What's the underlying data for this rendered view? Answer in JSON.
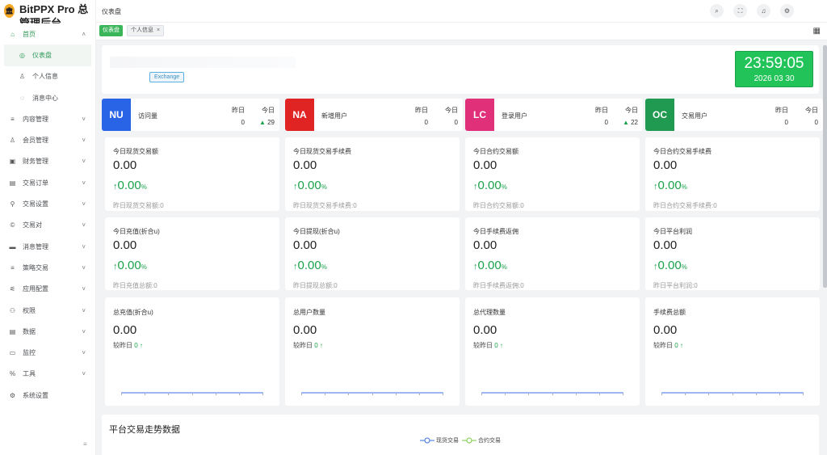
{
  "app": {
    "title": "BitPPX Pro 总管理后台",
    "logo_glyph": "🏛"
  },
  "sidebar": {
    "items": [
      {
        "label": "首页",
        "icon": "home-icon",
        "glyph": "⌂"
      },
      {
        "label": "仪表盘",
        "icon": "dashboard-icon",
        "glyph": "◎"
      },
      {
        "label": "个人信息",
        "icon": "user-icon",
        "glyph": "♙"
      },
      {
        "label": "消息中心",
        "icon": "message-icon",
        "glyph": "◌"
      },
      {
        "label": "内容管理",
        "icon": "list-icon",
        "glyph": "≡"
      },
      {
        "label": "会员管理",
        "icon": "member-icon",
        "glyph": "♙"
      },
      {
        "label": "财务管理",
        "icon": "finance-icon",
        "glyph": "▣"
      },
      {
        "label": "交易订单",
        "icon": "order-icon",
        "glyph": "▤"
      },
      {
        "label": "交易设置",
        "icon": "wrench-icon",
        "glyph": "⚲"
      },
      {
        "label": "交易对",
        "icon": "pair-icon",
        "glyph": "©"
      },
      {
        "label": "消息管理",
        "icon": "mail-icon",
        "glyph": "▬"
      },
      {
        "label": "策略交易",
        "icon": "strategy-icon",
        "glyph": "≡"
      },
      {
        "label": "应用配置",
        "icon": "config-icon",
        "glyph": "⚟"
      },
      {
        "label": "权限",
        "icon": "permission-icon",
        "glyph": "⚇"
      },
      {
        "label": "数据",
        "icon": "data-icon",
        "glyph": "▤"
      },
      {
        "label": "监控",
        "icon": "monitor-icon",
        "glyph": "▭"
      },
      {
        "label": "工具",
        "icon": "tool-icon",
        "glyph": "%"
      },
      {
        "label": "系统设置",
        "icon": "settings-icon",
        "glyph": "⚙"
      }
    ],
    "collapse_glyph": "≡"
  },
  "header": {
    "breadcrumb": "仪表盘",
    "buttons": [
      "search-icon",
      "fullscreen-icon",
      "bell-icon",
      "gear-icon"
    ],
    "button_glyphs": [
      "⌕",
      "⛶",
      "♫",
      "⚙"
    ]
  },
  "tabs": [
    {
      "label": "仪表盘"
    },
    {
      "label": "个人信息",
      "close": "×"
    }
  ],
  "banner": {
    "tag": "Exchange",
    "time": "23:59:05",
    "date": "2026 03 30"
  },
  "stats": [
    {
      "code": "NU",
      "label": "访问量",
      "color": "#2a64e6",
      "h1": "昨日",
      "h2": "今日",
      "y": "0",
      "t": "29",
      "t_up": true
    },
    {
      "code": "NA",
      "label": "新增用户",
      "color": "#e02424",
      "h1": "昨日",
      "h2": "今日",
      "y": "0",
      "t": "0",
      "t_up": false
    },
    {
      "code": "LC",
      "label": "登录用户",
      "color": "#e0307a",
      "h1": "昨日",
      "h2": "今日",
      "y": "0",
      "t": "22",
      "t_up": true
    },
    {
      "code": "OC",
      "label": "交易用户",
      "color": "#1f9a50",
      "h1": "昨日",
      "h2": "今日",
      "y": "0",
      "t": "0",
      "t_up": false
    }
  ],
  "cards_row1": [
    {
      "label": "今日现货交易额",
      "value": "0.00",
      "pct": "0.00",
      "foot": "昨日现货交易额:0"
    },
    {
      "label": "今日现货交易手续费",
      "value": "0.00",
      "pct": "0.00",
      "foot": "昨日现货交易手续费:0"
    },
    {
      "label": "今日合约交易额",
      "value": "0.00",
      "pct": "0.00",
      "foot": "昨日合约交易额:0"
    },
    {
      "label": "今日合约交易手续费",
      "value": "0.00",
      "pct": "0.00",
      "foot": "昨日合约交易手续费:0"
    }
  ],
  "cards_row2": [
    {
      "label": "今日充值(折合u)",
      "value": "0.00",
      "pct": "0.00",
      "foot": "昨日充值总额:0"
    },
    {
      "label": "今日提现(折合u)",
      "value": "0.00",
      "pct": "0.00",
      "foot": "昨日提现总额:0"
    },
    {
      "label": "今日手续费返佣",
      "value": "0.00",
      "pct": "0.00",
      "foot": "昨日手续费返佣:0"
    },
    {
      "label": "今日平台利润",
      "value": "0.00",
      "pct": "0.00",
      "foot": "昨日平台利润:0"
    }
  ],
  "cards_row3": [
    {
      "label": "总充值(折合u)",
      "value": "0.00",
      "cmp": "较昨日",
      "cmp_val": "0"
    },
    {
      "label": "总用户数量",
      "value": "0.00",
      "cmp": "较昨日",
      "cmp_val": "0"
    },
    {
      "label": "总代理数量",
      "value": "0.00",
      "cmp": "较昨日",
      "cmp_val": "0"
    },
    {
      "label": "手续费总额",
      "value": "0.00",
      "cmp": "较昨日",
      "cmp_val": "0"
    }
  ],
  "pct_unit": "%",
  "arrow_glyph": "↑",
  "trend": {
    "title": "平台交易走势数据",
    "legend": [
      {
        "label": "现货交易",
        "color": "#3b6fe0"
      },
      {
        "label": "合约交易",
        "color": "#7ac943"
      }
    ]
  },
  "colors": {
    "accent": "#2e9a58",
    "clock": "#22c45a"
  }
}
